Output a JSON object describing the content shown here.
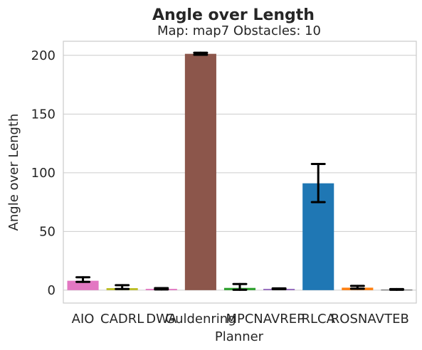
{
  "chart_data": {
    "type": "bar",
    "title": "Angle over Length",
    "subtitle": "Map: map7 Obstacles: 10",
    "xlabel": "Planner",
    "ylabel": "Angle over Length",
    "ylim": [
      -11,
      212
    ],
    "yticks": [
      0,
      50,
      100,
      150,
      200
    ],
    "grid": true,
    "categories": [
      "AIO",
      "CADRL",
      "DWA",
      "Guldenring",
      "MPC",
      "NAVREP",
      "RLCA",
      "ROSNAV",
      "TEB"
    ],
    "values": [
      8.0,
      1.7,
      1.1,
      201.3,
      1.9,
      1.1,
      91.0,
      2.1,
      0.6
    ],
    "error_low": [
      7.0,
      1.0,
      0.6,
      200.5,
      0.3,
      0.8,
      75.0,
      1.2,
      0.3
    ],
    "error_high": [
      11.0,
      4.2,
      1.7,
      202.2,
      5.2,
      1.5,
      107.5,
      3.6,
      0.9
    ],
    "colors": [
      "#e377c2",
      "#bcbd22",
      "#e377c2",
      "#8c564b",
      "#2ca02c",
      "#9467bd",
      "#1f77b4",
      "#ff7f0e",
      "#7f7f7f"
    ]
  }
}
